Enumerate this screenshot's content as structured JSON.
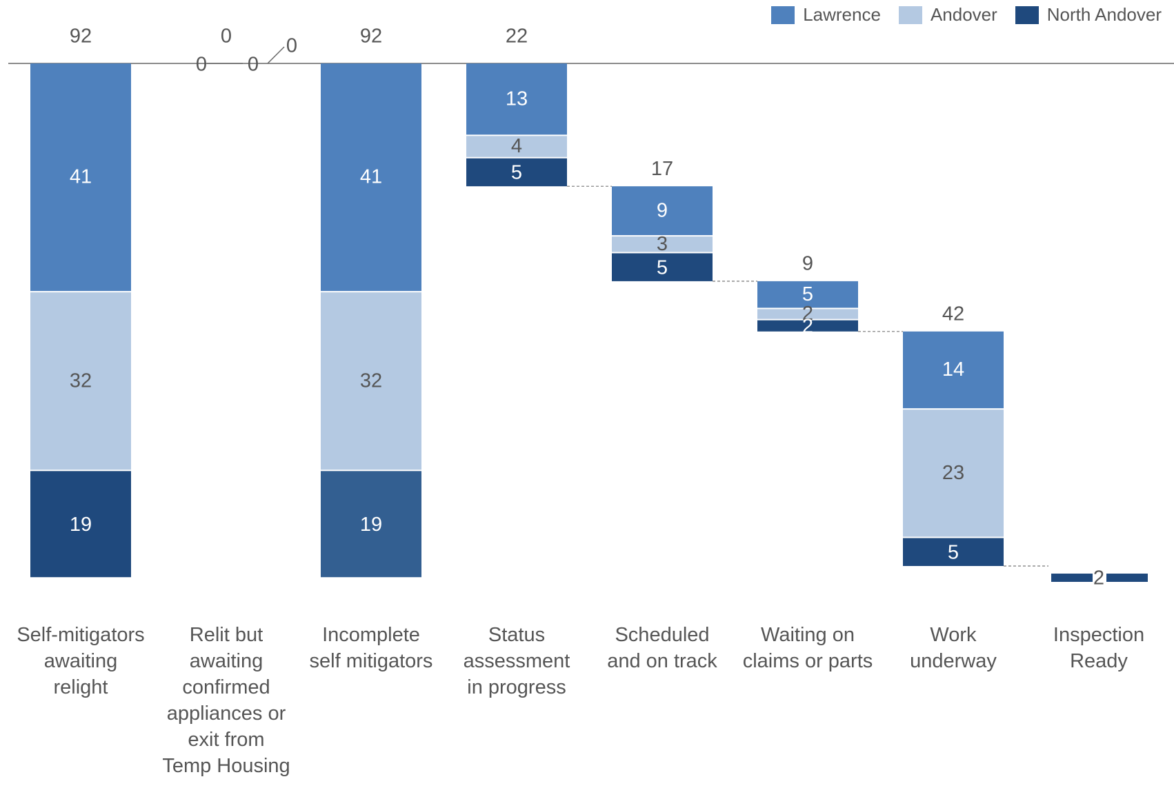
{
  "chart_data": {
    "type": "bar",
    "categories": [
      "Self-mitigators\nawaiting\nrelight",
      "Relit but\nawaiting\nconfirmed\nappliances or\nexit from\nTemp Housing",
      "Incomplete\nself mitigators",
      "Status\nassessment\nin progress",
      "Scheduled\nand on track",
      "Waiting on\nclaims or parts",
      "Work\nunderway",
      "Inspection\nReady"
    ],
    "series": [
      {
        "name": "Lawrence",
        "values": [
          41,
          0,
          41,
          13,
          9,
          5,
          14,
          0
        ]
      },
      {
        "name": "Andover",
        "values": [
          32,
          0,
          32,
          4,
          3,
          2,
          23,
          0
        ]
      },
      {
        "name": "North Andover",
        "values": [
          19,
          0,
          19,
          5,
          5,
          2,
          5,
          2
        ]
      }
    ],
    "totals": [
      92,
      0,
      92,
      22,
      17,
      9,
      42,
      2
    ],
    "relit_series_labels": [
      "0",
      "0",
      "0"
    ],
    "stacked": true,
    "waterfall": true,
    "colors": {
      "Lawrence": "#4f81bd",
      "Andover": "#b4c9e2",
      "North Andover": "#1f497d",
      "Incomplete North Andover": "#335f91"
    },
    "legend": {
      "position": "top-right"
    },
    "grid": false
  }
}
